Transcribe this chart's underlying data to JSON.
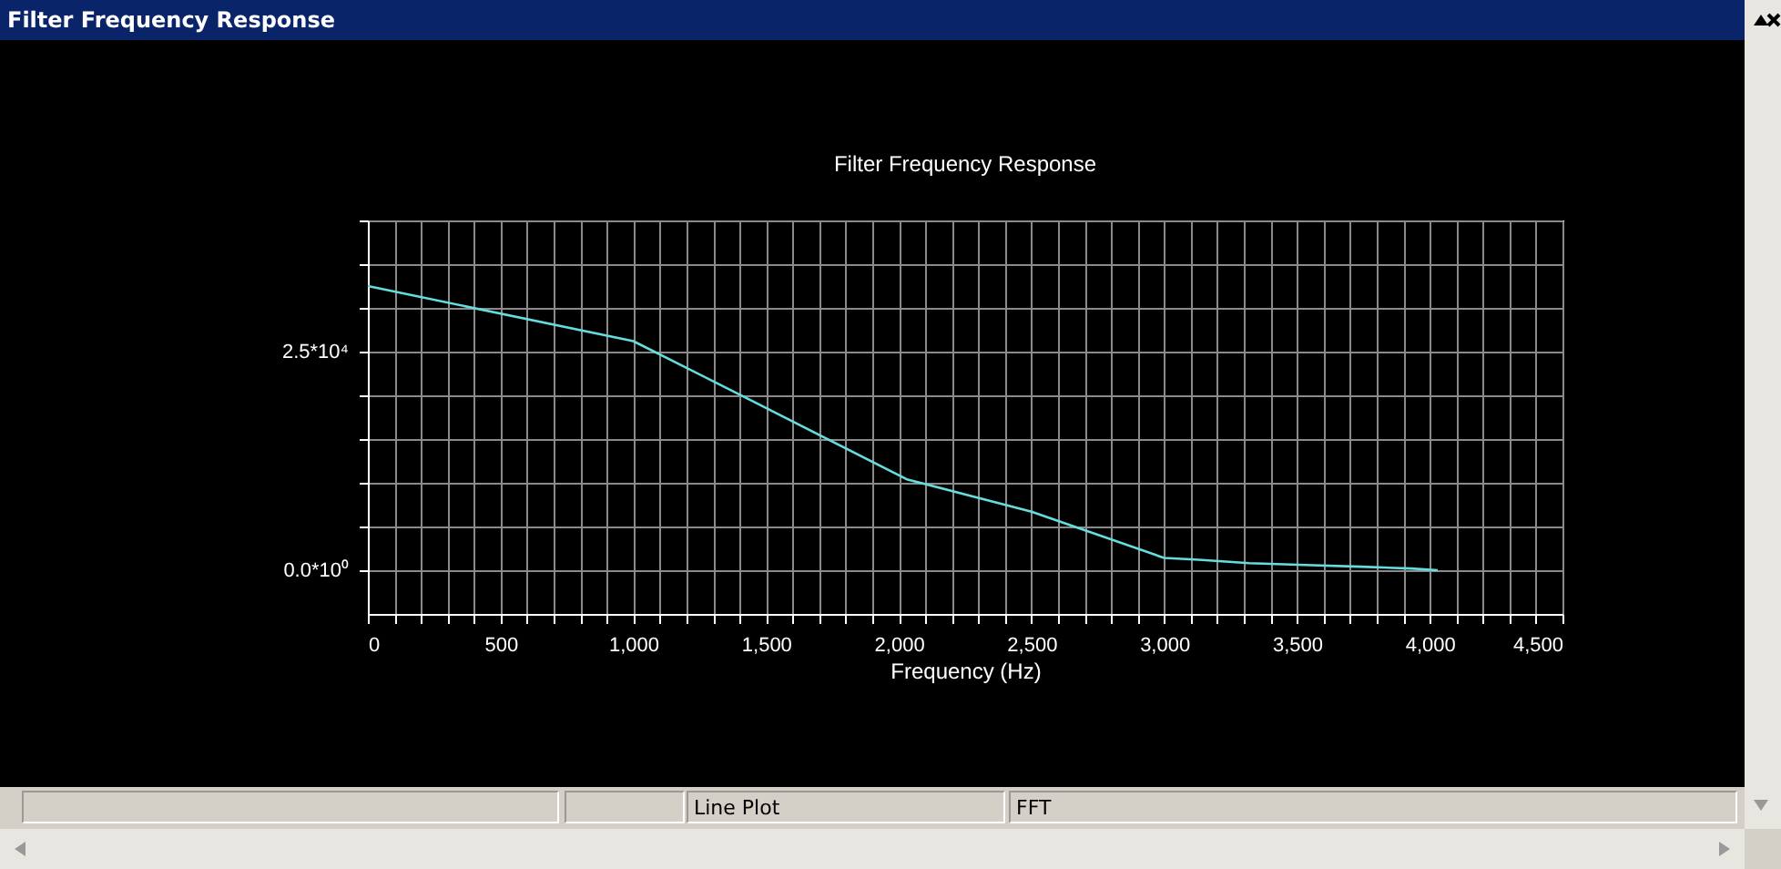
{
  "chart_data": {
    "type": "line",
    "title": "Filter Frequency Response",
    "xlabel": "Frequency (Hz)",
    "annotations": [
      "Filter Frequency Response",
      "Line Plot",
      "FFT"
    ],
    "x": [
      0,
      1000,
      1400,
      2030,
      2500,
      3000,
      3130,
      3320,
      3530,
      3740,
      3930,
      4030
    ],
    "series": [
      {
        "color": "#66dddd",
        "values": [
          32500,
          26200,
          20100,
          10400,
          6700,
          1400,
          1200,
          800,
          600,
          400,
          200,
          0
        ]
      }
    ],
    "xlim": [
      0,
      4500
    ],
    "ylim": [
      -5000,
      40000
    ],
    "xticks": [
      0,
      {
        "value": 100,
        "label": null
      },
      {
        "value": 200,
        "label": null
      },
      {
        "value": 300,
        "label": null
      },
      {
        "value": 400,
        "label": null
      },
      500,
      {
        "value": 600,
        "label": null
      },
      {
        "value": 700,
        "label": null
      },
      {
        "value": 800,
        "label": null
      },
      {
        "value": 900,
        "label": null
      },
      {
        "value": 1000,
        "label": "1,000"
      },
      {
        "value": 1100,
        "label": null
      },
      {
        "value": 1200,
        "label": null
      },
      {
        "value": 1300,
        "label": null
      },
      {
        "value": 1400,
        "label": null
      },
      {
        "value": 1500,
        "label": "1,500"
      },
      {
        "value": 1600,
        "label": null
      },
      {
        "value": 1700,
        "label": null
      },
      {
        "value": 1800,
        "label": null
      },
      {
        "value": 1900,
        "label": null
      },
      {
        "value": 2000,
        "label": "2,000"
      },
      {
        "value": 2100,
        "label": null
      },
      {
        "value": 2200,
        "label": null
      },
      {
        "value": 2300,
        "label": null
      },
      {
        "value": 2400,
        "label": null
      },
      {
        "value": 2500,
        "label": "2,500"
      },
      {
        "value": 2600,
        "label": null
      },
      {
        "value": 2700,
        "label": null
      },
      {
        "value": 2800,
        "label": null
      },
      {
        "value": 2900,
        "label": null
      },
      {
        "value": 3000,
        "label": "3,000"
      },
      {
        "value": 3100,
        "label": null
      },
      {
        "value": 3200,
        "label": null
      },
      {
        "value": 3300,
        "label": null
      },
      {
        "value": 3400,
        "label": null
      },
      {
        "value": 3500,
        "label": "3,500"
      },
      {
        "value": 3600,
        "label": null
      },
      {
        "value": 3700,
        "label": null
      },
      {
        "value": 3800,
        "label": null
      },
      {
        "value": 3900,
        "label": null
      },
      {
        "value": 4000,
        "label": "4,000"
      },
      {
        "value": 4100,
        "label": null
      },
      {
        "value": 4200,
        "label": null
      },
      {
        "value": 4300,
        "label": null
      },
      {
        "value": 4400,
        "label": null
      },
      {
        "value": 4500,
        "label": "4,500"
      }
    ],
    "yticks": [
      {
        "value": 0,
        "label": "0.0*10⁰"
      },
      {
        "value": 5000,
        "label": null
      },
      {
        "value": 10000,
        "label": null
      },
      {
        "value": 15000,
        "label": null
      },
      {
        "value": 20000,
        "label": null
      },
      {
        "value": 25000,
        "label": "2.5*10⁴"
      },
      {
        "value": 30000,
        "label": null
      },
      {
        "value": 35000,
        "label": null
      },
      {
        "value": 40000,
        "label": null
      }
    ],
    "grid": true,
    "line_style": "solid",
    "marker": "none"
  }
}
